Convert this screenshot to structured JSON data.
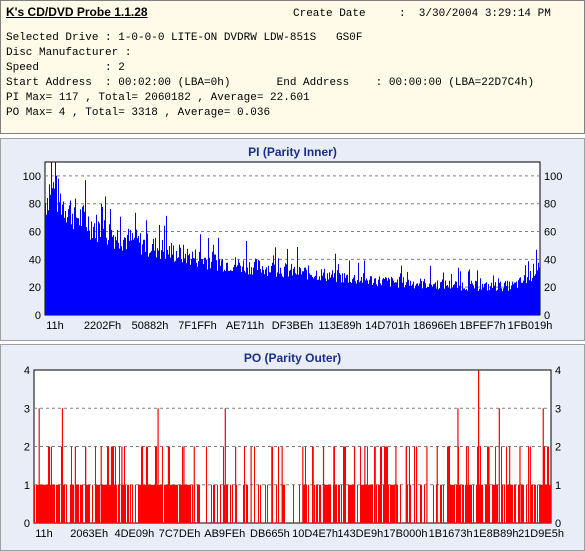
{
  "app": {
    "title": "K's CD/DVD Probe 1.1.28"
  },
  "info": {
    "create_date_label": "Create Date",
    "create_date_value": ":  3/30/2004 3:29:14 PM",
    "lines": [
      "Selected Drive : 1-0-0-0 LITE-ON DVDRW LDW-851S   GS0F",
      "Disc Manufacturer :",
      "Speed          : 2",
      "Start Address  : 00:02:00 (LBA=0h)       End Address    : 00:00:00 (LBA=22D7C4h)",
      "PI Max= 117 , Total= 2060182 , Average= 22.601",
      "PO Max= 4 , Total= 3318 , Average= 0.036"
    ]
  },
  "colors": {
    "bar": "#0000ff",
    "po_bar": "#ff0000",
    "panel_bg": "#e8edf8",
    "plot_bg": "#ffffff",
    "title": "#1a2f8a"
  },
  "chart_data": [
    {
      "type": "bar",
      "title": "PI (Parity Inner)",
      "ylim": [
        0,
        110
      ],
      "yticks": [
        0,
        20,
        40,
        60,
        80,
        100
      ],
      "x_tick_labels": [
        "11h",
        "2202Fh",
        "50882h",
        "7F1FFh",
        "AE711h",
        "DF3BEh",
        "113E89h",
        "14D701h",
        "18696Eh",
        "1BFEF7h",
        "1FB019h"
      ],
      "grid": true,
      "envelope": [
        {
          "x": 0.0,
          "y": 95
        },
        {
          "x": 0.01,
          "y": 110
        },
        {
          "x": 0.03,
          "y": 97
        },
        {
          "x": 0.06,
          "y": 85
        },
        {
          "x": 0.1,
          "y": 75
        },
        {
          "x": 0.15,
          "y": 66
        },
        {
          "x": 0.2,
          "y": 60
        },
        {
          "x": 0.25,
          "y": 54
        },
        {
          "x": 0.3,
          "y": 49
        },
        {
          "x": 0.35,
          "y": 45
        },
        {
          "x": 0.4,
          "y": 42
        },
        {
          "x": 0.45,
          "y": 40
        },
        {
          "x": 0.5,
          "y": 37
        },
        {
          "x": 0.55,
          "y": 35
        },
        {
          "x": 0.6,
          "y": 32
        },
        {
          "x": 0.65,
          "y": 30
        },
        {
          "x": 0.7,
          "y": 28
        },
        {
          "x": 0.75,
          "y": 27
        },
        {
          "x": 0.8,
          "y": 26
        },
        {
          "x": 0.85,
          "y": 25
        },
        {
          "x": 0.9,
          "y": 24
        },
        {
          "x": 0.95,
          "y": 25
        },
        {
          "x": 0.98,
          "y": 32
        },
        {
          "x": 1.0,
          "y": 45
        }
      ]
    },
    {
      "type": "bar",
      "title": "PO (Parity Outer)",
      "ylim": [
        0,
        4
      ],
      "yticks": [
        0,
        1,
        2,
        3,
        4
      ],
      "x_tick_labels": [
        "11h",
        "2063Eh",
        "4DE09h",
        "7C7DEh",
        "AB9FEh",
        "DB665h",
        "10D4E7h",
        "143DE9h",
        "17B000h",
        "1B1673h",
        "1E8B89h",
        "21D9E5h"
      ],
      "grid": true,
      "spikes": [
        {
          "x": 0.01,
          "y": 3
        },
        {
          "x": 0.03,
          "y": 2
        },
        {
          "x": 0.055,
          "y": 3
        },
        {
          "x": 0.08,
          "y": 2
        },
        {
          "x": 0.1,
          "y": 2
        },
        {
          "x": 0.13,
          "y": 2
        },
        {
          "x": 0.15,
          "y": 2
        },
        {
          "x": 0.17,
          "y": 2
        },
        {
          "x": 0.24,
          "y": 3
        },
        {
          "x": 0.26,
          "y": 2
        },
        {
          "x": 0.29,
          "y": 2
        },
        {
          "x": 0.31,
          "y": 2
        },
        {
          "x": 0.37,
          "y": 3
        },
        {
          "x": 0.39,
          "y": 2
        },
        {
          "x": 0.42,
          "y": 2
        },
        {
          "x": 0.46,
          "y": 2
        },
        {
          "x": 0.48,
          "y": 2
        },
        {
          "x": 0.52,
          "y": 2
        },
        {
          "x": 0.54,
          "y": 2
        },
        {
          "x": 0.56,
          "y": 2
        },
        {
          "x": 0.58,
          "y": 2
        },
        {
          "x": 0.6,
          "y": 2
        },
        {
          "x": 0.62,
          "y": 2
        },
        {
          "x": 0.64,
          "y": 2
        },
        {
          "x": 0.66,
          "y": 2
        },
        {
          "x": 0.68,
          "y": 2
        },
        {
          "x": 0.7,
          "y": 2
        },
        {
          "x": 0.72,
          "y": 2
        },
        {
          "x": 0.74,
          "y": 2
        },
        {
          "x": 0.76,
          "y": 2
        },
        {
          "x": 0.78,
          "y": 2
        },
        {
          "x": 0.8,
          "y": 2
        },
        {
          "x": 0.82,
          "y": 3
        },
        {
          "x": 0.84,
          "y": 2
        },
        {
          "x": 0.86,
          "y": 4
        },
        {
          "x": 0.88,
          "y": 2
        },
        {
          "x": 0.9,
          "y": 3
        },
        {
          "x": 0.92,
          "y": 2
        },
        {
          "x": 0.94,
          "y": 2
        },
        {
          "x": 0.96,
          "y": 2
        },
        {
          "x": 0.985,
          "y": 3
        }
      ]
    }
  ]
}
